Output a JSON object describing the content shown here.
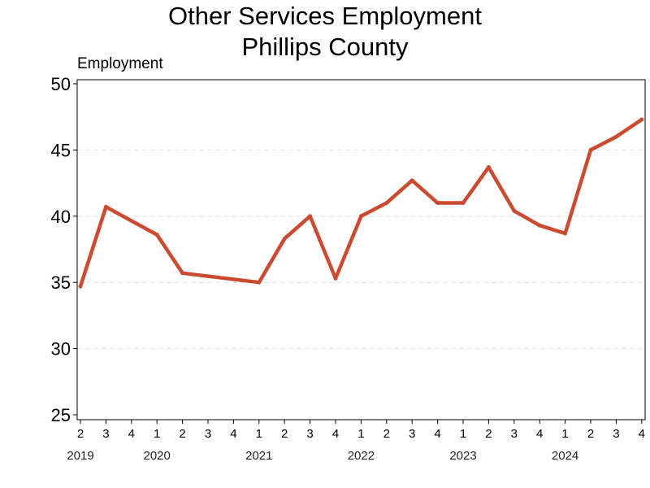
{
  "chart_data": {
    "type": "line",
    "title": "Other Services Employment",
    "subtitle": "Phillips County",
    "ylabel": "Employment",
    "xlabel": "",
    "ylim": [
      25,
      50
    ],
    "yticks": [
      25,
      30,
      35,
      40,
      45,
      50
    ],
    "grid": "horizontal dashed",
    "line_color": "#cc4a30",
    "x_quarter_labels": [
      "2",
      "3",
      "4",
      "1",
      "2",
      "3",
      "4",
      "1",
      "2",
      "3",
      "4",
      "1",
      "2",
      "3",
      "4",
      "1",
      "2",
      "3",
      "4",
      "1",
      "2",
      "3",
      "4"
    ],
    "x_year_labels": [
      {
        "label": "2019",
        "index": 0
      },
      {
        "label": "2020",
        "index": 3
      },
      {
        "label": "2021",
        "index": 7
      },
      {
        "label": "2022",
        "index": 11
      },
      {
        "label": "2023",
        "index": 15
      },
      {
        "label": "2024",
        "index": 19
      }
    ],
    "series": [
      {
        "x": [
          0,
          1,
          3,
          4,
          7,
          8,
          9,
          10,
          11,
          12,
          13,
          14,
          15,
          16,
          17,
          18,
          19,
          20,
          21,
          22
        ],
        "values": [
          34.7,
          40.7,
          38.6,
          35.7,
          35.0,
          38.3,
          40.0,
          35.3,
          40.0,
          41.0,
          42.7,
          41.0,
          41.0,
          43.7,
          40.4,
          39.3,
          38.7,
          45.0,
          46.0,
          47.3
        ]
      }
    ]
  }
}
